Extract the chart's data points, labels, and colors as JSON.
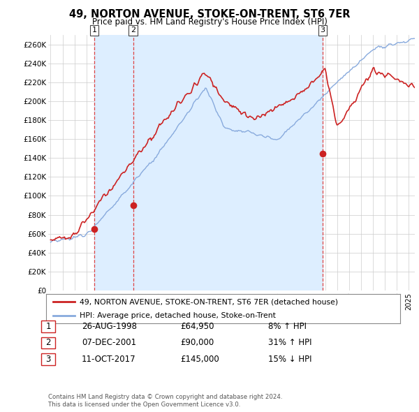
{
  "title": "49, NORTON AVENUE, STOKE-ON-TRENT, ST6 7ER",
  "subtitle": "Price paid vs. HM Land Registry's House Price Index (HPI)",
  "yticks": [
    0,
    20000,
    40000,
    60000,
    80000,
    100000,
    120000,
    140000,
    160000,
    180000,
    200000,
    220000,
    240000,
    260000
  ],
  "ytick_labels": [
    "£0",
    "£20K",
    "£40K",
    "£60K",
    "£80K",
    "£100K",
    "£120K",
    "£140K",
    "£160K",
    "£180K",
    "£200K",
    "£220K",
    "£240K",
    "£260K"
  ],
  "ylim": [
    0,
    270000
  ],
  "xlim_min": 1994.8,
  "xlim_max": 2025.5,
  "line_color_red": "#cc2222",
  "line_color_blue": "#88aadd",
  "shade_color": "#ddeeff",
  "background_color": "#ffffff",
  "grid_color": "#cccccc",
  "vline_color": "#dd4444",
  "purchases": [
    {
      "label": "1",
      "date": "26-AUG-1998",
      "price": 64950,
      "x": 1998.65
    },
    {
      "label": "2",
      "date": "07-DEC-2001",
      "price": 90000,
      "x": 2001.92
    },
    {
      "label": "3",
      "date": "11-OCT-2017",
      "price": 145000,
      "x": 2017.78
    }
  ],
  "legend_red_label": "49, NORTON AVENUE, STOKE-ON-TRENT, ST6 7ER (detached house)",
  "legend_blue_label": "HPI: Average price, detached house, Stoke-on-Trent",
  "footer_line1": "Contains HM Land Registry data © Crown copyright and database right 2024.",
  "footer_line2": "This data is licensed under the Open Government Licence v3.0.",
  "table_rows": [
    {
      "num": "1",
      "date": "26-AUG-1998",
      "price": "£64,950",
      "hpi": "8% ↑ HPI"
    },
    {
      "num": "2",
      "date": "07-DEC-2001",
      "price": "£90,000",
      "hpi": "31% ↑ HPI"
    },
    {
      "num": "3",
      "date": "11-OCT-2017",
      "price": "£145,000",
      "hpi": "15% ↓ HPI"
    }
  ]
}
